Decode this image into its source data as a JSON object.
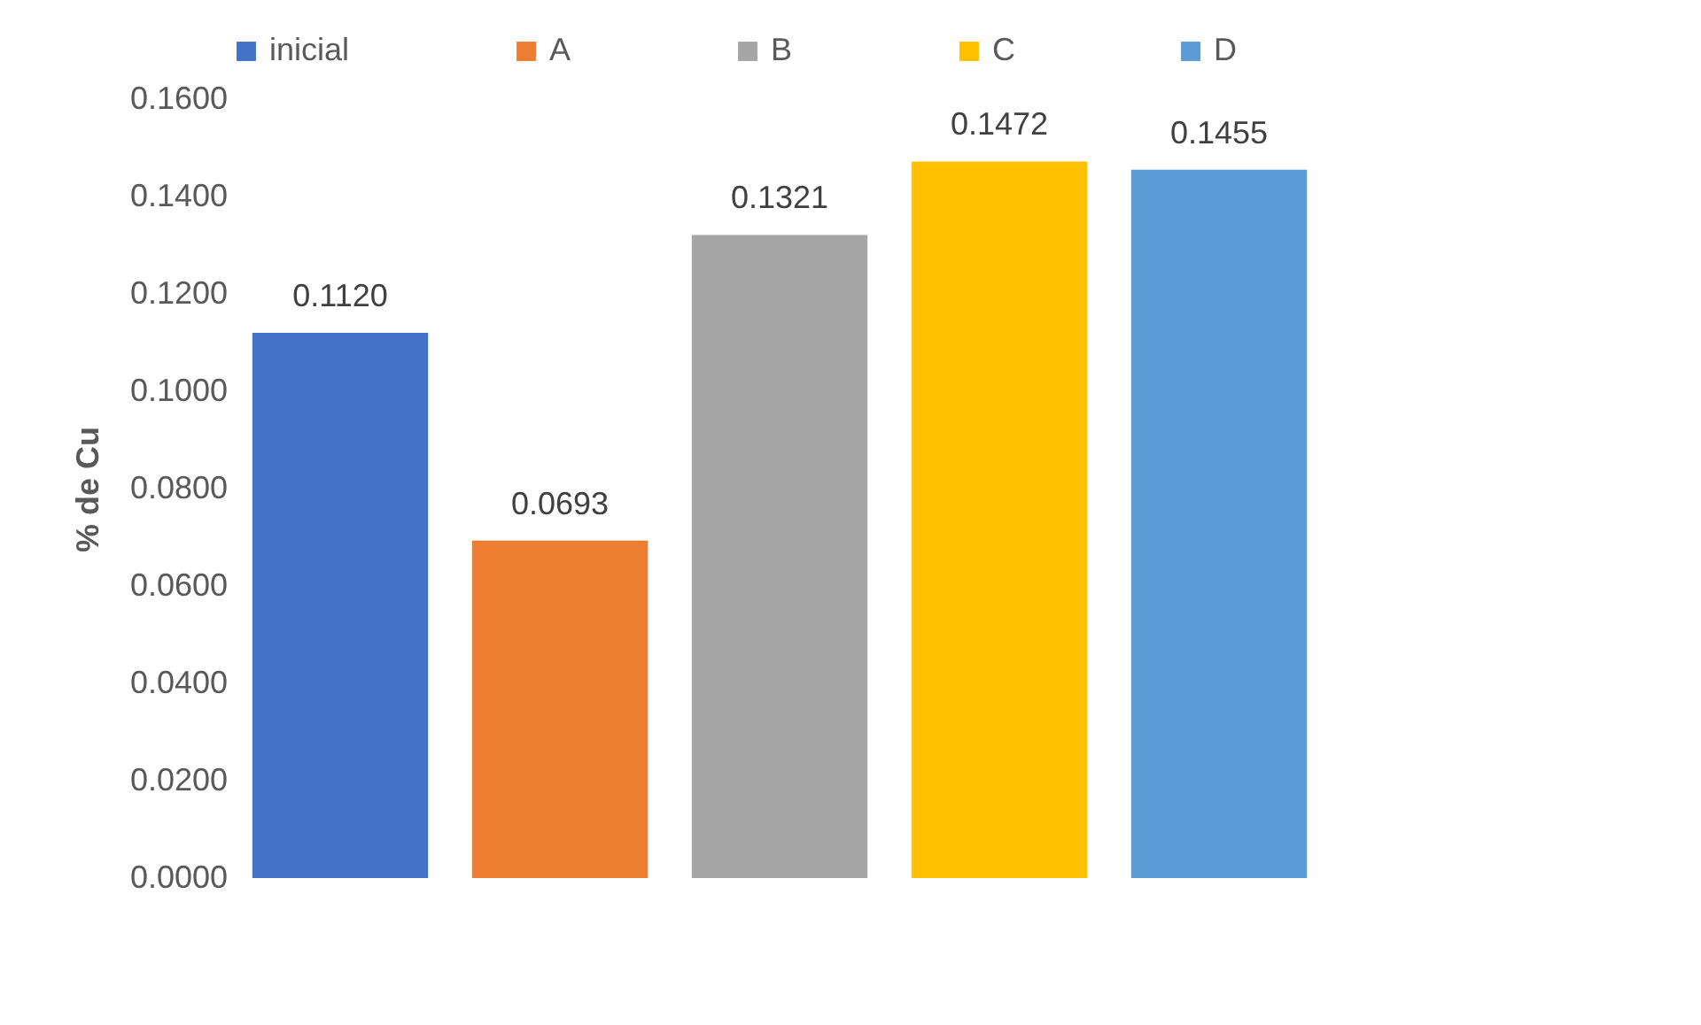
{
  "chart_data": {
    "type": "bar",
    "ylabel": "% de Cu",
    "categories": [
      null,
      null,
      null,
      null,
      null
    ],
    "series": [
      {
        "name": "inicial",
        "color": "#4472c4",
        "values": [
          0.112,
          null,
          null,
          null,
          null
        ],
        "value_labels": [
          "0.1120",
          null,
          null,
          null,
          null
        ]
      },
      {
        "name": "A",
        "color": "#ed7d31",
        "values": [
          null,
          0.0693,
          null,
          null,
          null
        ],
        "value_labels": [
          null,
          "0.0693",
          null,
          null,
          null
        ]
      },
      {
        "name": "B",
        "color": "#a5a5a5",
        "values": [
          null,
          null,
          0.1321,
          null,
          null
        ],
        "value_labels": [
          null,
          null,
          "0.1321",
          null,
          null
        ]
      },
      {
        "name": "C",
        "color": "#ffc000",
        "values": [
          null,
          null,
          null,
          0.1472,
          null
        ],
        "value_labels": [
          null,
          null,
          null,
          "0.1472",
          null
        ]
      },
      {
        "name": "D",
        "color": "#5b9bd5",
        "values": [
          null,
          null,
          null,
          null,
          0.1455
        ],
        "value_labels": [
          null,
          null,
          null,
          null,
          "0.1455"
        ]
      }
    ],
    "ylim": [
      0,
      0.16
    ],
    "yticks": [
      {
        "value": 0,
        "label": "0.0000"
      },
      {
        "value": 0.02,
        "label": "0.0200"
      },
      {
        "value": 0.04,
        "label": "0.0400"
      },
      {
        "value": 0.06,
        "label": "0.0600"
      },
      {
        "value": 0.08,
        "label": "0.0800"
      },
      {
        "value": 0.1,
        "label": "0.1000"
      },
      {
        "value": 0.12,
        "label": "0.1200"
      },
      {
        "value": 0.14,
        "label": "0.1400"
      },
      {
        "value": 0.16,
        "label": "0.1600"
      }
    ],
    "grid": false,
    "legend": "top",
    "stacked": true
  }
}
